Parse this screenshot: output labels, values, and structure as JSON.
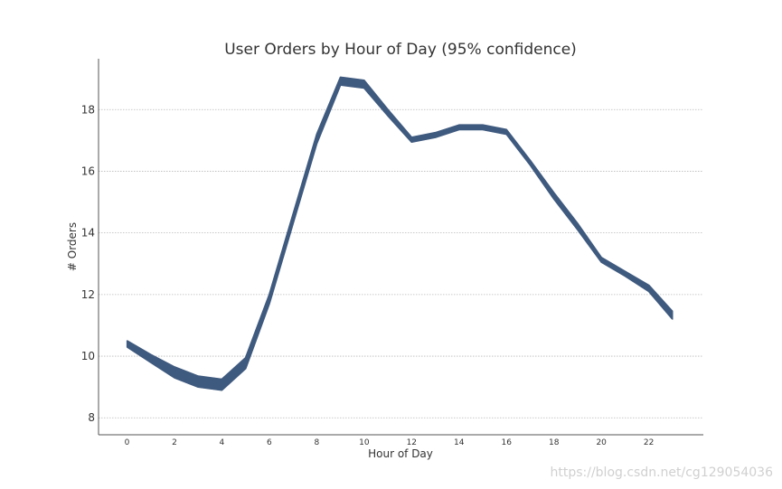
{
  "chart_data": {
    "type": "area",
    "title": "User Orders by Hour of Day (95% confidence)",
    "xlabel": "Hour of Day",
    "ylabel": "# Orders",
    "x": [
      0,
      1,
      2,
      3,
      4,
      5,
      6,
      7,
      8,
      9,
      10,
      11,
      12,
      13,
      14,
      15,
      16,
      17,
      18,
      19,
      20,
      21,
      22,
      23
    ],
    "lower": [
      10.3,
      9.8,
      9.3,
      9.0,
      8.9,
      9.6,
      11.7,
      14.3,
      16.9,
      18.8,
      18.7,
      17.8,
      16.95,
      17.1,
      17.35,
      17.35,
      17.2,
      16.2,
      15.1,
      14.1,
      13.05,
      12.6,
      12.1,
      11.2
    ],
    "upper": [
      10.5,
      10.05,
      9.65,
      9.35,
      9.25,
      9.95,
      12.0,
      14.6,
      17.2,
      19.05,
      18.95,
      18.0,
      17.1,
      17.25,
      17.5,
      17.5,
      17.35,
      16.35,
      15.3,
      14.3,
      13.2,
      12.75,
      12.3,
      11.45
    ],
    "xticks": [
      0,
      2,
      4,
      6,
      8,
      10,
      12,
      14,
      16,
      18,
      20,
      22
    ],
    "yticks": [
      8,
      10,
      12,
      14,
      16,
      18
    ],
    "xlim": [
      -1.2,
      24.3
    ],
    "ylim": [
      7.45,
      19.65
    ],
    "grid": "horizontal",
    "colors": {
      "fill": "#3f5a7f",
      "grid": "#b9b9b9",
      "axis": "#555555",
      "text": "#333333"
    }
  },
  "watermark": "https://blog.csdn.net/cg129054036"
}
